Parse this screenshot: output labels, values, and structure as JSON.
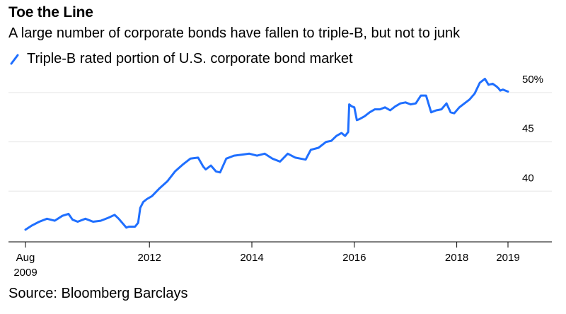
{
  "title": "Toe the Line",
  "subtitle": "A large number of corporate bonds have fallen to triple-B, but not to junk",
  "source": "Source: Bloomberg Barclays",
  "colors": {
    "line": "#1F6FFF",
    "grid": "#e6e6e6",
    "axis": "#000000"
  },
  "chart_data": {
    "type": "line",
    "title": "Toe the Line",
    "subtitle": "A large number of corporate bonds have fallen to triple-B, but not to junk",
    "xlabel": "",
    "ylabel": "",
    "xlim": [
      2009.58,
      2019.0
    ],
    "ylim": [
      35.0,
      51.5
    ],
    "grid": "horizontal",
    "legend": "top-left",
    "y_ticks": [
      {
        "value": 40,
        "label": "40"
      },
      {
        "value": 45,
        "label": "45"
      },
      {
        "value": 50,
        "label": "50%"
      }
    ],
    "x_ticks": [
      {
        "value": 2009.58,
        "label": "Aug",
        "sublabel": "2009"
      },
      {
        "value": 2012,
        "label": "2012",
        "sublabel": ""
      },
      {
        "value": 2014,
        "label": "2014",
        "sublabel": ""
      },
      {
        "value": 2016,
        "label": "2016",
        "sublabel": ""
      },
      {
        "value": 2018,
        "label": "2018",
        "sublabel": ""
      },
      {
        "value": 2019,
        "label": "2019",
        "sublabel": ""
      }
    ],
    "series": [
      {
        "name": "Triple-B rated portion of U.S. corporate bond market",
        "x": [
          2009.58,
          2009.7,
          2009.85,
          2010.0,
          2010.15,
          2010.3,
          2010.42,
          2010.5,
          2010.6,
          2010.75,
          2010.9,
          2011.05,
          2011.2,
          2011.32,
          2011.4,
          2011.5,
          2011.55,
          2011.6,
          2011.72,
          2011.78,
          2011.82,
          2011.88,
          2011.95,
          2012.05,
          2012.2,
          2012.35,
          2012.5,
          2012.65,
          2012.8,
          2012.95,
          2013.05,
          2013.1,
          2013.2,
          2013.3,
          2013.38,
          2013.5,
          2013.65,
          2013.8,
          2013.95,
          2014.1,
          2014.25,
          2014.4,
          2014.55,
          2014.7,
          2014.85,
          2014.95,
          2015.05,
          2015.15,
          2015.3,
          2015.45,
          2015.55,
          2015.65,
          2015.75,
          2015.82,
          2015.88,
          2015.9,
          2015.95,
          2016.0,
          2016.05,
          2016.1,
          2016.2,
          2016.3,
          2016.4,
          2016.5,
          2016.6,
          2016.7,
          2016.8,
          2016.9,
          2017.0,
          2017.1,
          2017.2,
          2017.3,
          2017.4,
          2017.5,
          2017.6,
          2017.7,
          2017.8,
          2017.88,
          2017.95,
          2018.05,
          2018.15,
          2018.25,
          2018.35,
          2018.45,
          2018.55,
          2018.62,
          2018.7,
          2018.78,
          2018.82,
          2018.85,
          2018.9,
          2018.95,
          2019.0
        ],
        "y": [
          36.1,
          36.5,
          36.9,
          37.2,
          37.0,
          37.5,
          37.7,
          37.1,
          36.9,
          37.2,
          36.9,
          37.0,
          37.3,
          37.6,
          37.2,
          36.6,
          36.3,
          36.4,
          36.4,
          36.8,
          38.3,
          38.9,
          39.2,
          39.5,
          40.3,
          41.0,
          42.0,
          42.7,
          43.3,
          43.4,
          42.5,
          42.2,
          42.6,
          42.0,
          41.9,
          43.3,
          43.6,
          43.7,
          43.8,
          43.6,
          43.8,
          43.3,
          43.0,
          43.8,
          43.4,
          43.3,
          43.2,
          44.2,
          44.4,
          45.0,
          45.1,
          45.6,
          45.9,
          45.6,
          46.0,
          48.8,
          48.6,
          48.5,
          47.2,
          47.3,
          47.6,
          48.0,
          48.3,
          48.3,
          48.5,
          48.2,
          48.6,
          48.9,
          49.0,
          48.8,
          48.9,
          49.7,
          49.7,
          48.0,
          48.2,
          48.3,
          48.9,
          48.0,
          47.9,
          48.5,
          48.9,
          49.3,
          49.9,
          51.0,
          51.4,
          50.8,
          50.9,
          50.6,
          50.4,
          50.2,
          50.3,
          50.2,
          50.1
        ]
      }
    ]
  }
}
